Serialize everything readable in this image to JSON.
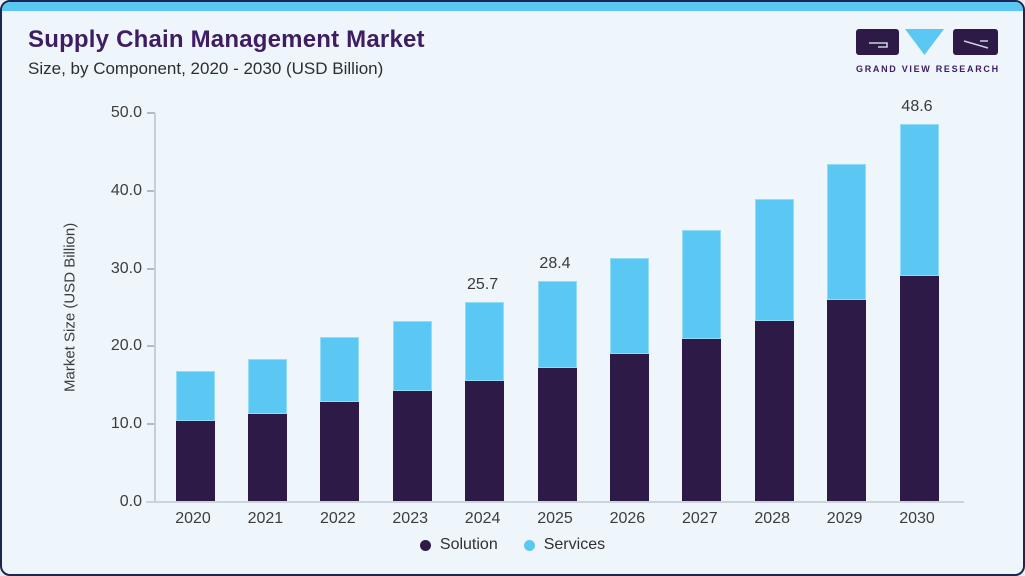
{
  "card": {
    "title": "Supply Chain Management Market",
    "subtitle": "Size, by Component, 2020 - 2030 (USD Billion)",
    "logo_text": "GRAND VIEW RESEARCH"
  },
  "colors": {
    "background": "#EEF5FB",
    "border": "#1B2653",
    "top_accent": "#5BC8F3",
    "title": "#3F1D63",
    "solution": "#2E1A47",
    "services": "#5BC8F3",
    "axis_text": "#3D3D3D"
  },
  "chart_data": {
    "type": "bar",
    "stacked": true,
    "title": "Supply Chain Management Market Size, by Component, 2020 - 2030 (USD Billion)",
    "categories": [
      "2020",
      "2021",
      "2022",
      "2023",
      "2024",
      "2025",
      "2026",
      "2027",
      "2028",
      "2029",
      "2030"
    ],
    "series": [
      {
        "name": "Solution",
        "color": "#2E1A47",
        "values": [
          10.4,
          11.3,
          12.9,
          14.3,
          15.6,
          17.2,
          19.0,
          21.0,
          23.3,
          25.9,
          29.0
        ]
      },
      {
        "name": "Services",
        "color": "#5BC8F3",
        "values": [
          6.5,
          7.1,
          8.3,
          9.0,
          10.1,
          11.2,
          12.4,
          13.9,
          15.6,
          17.5,
          19.6
        ]
      }
    ],
    "stacked_totals": [
      16.9,
      18.4,
      21.2,
      23.3,
      25.7,
      28.4,
      31.4,
      34.9,
      38.9,
      43.4,
      48.6
    ],
    "value_labels": [
      "",
      "",
      "",
      "",
      "25.7",
      "28.4",
      "",
      "",
      "",
      "",
      "48.6"
    ],
    "xlabel": "",
    "ylabel": "Market Size (USD Billion)",
    "ylim": [
      0,
      50
    ],
    "yticks": [
      "0.0",
      "10.0",
      "20.0",
      "30.0",
      "40.0",
      "50.0"
    ],
    "grid": false,
    "legend": {
      "position": "bottom",
      "entries": [
        "Solution",
        "Services"
      ]
    }
  }
}
